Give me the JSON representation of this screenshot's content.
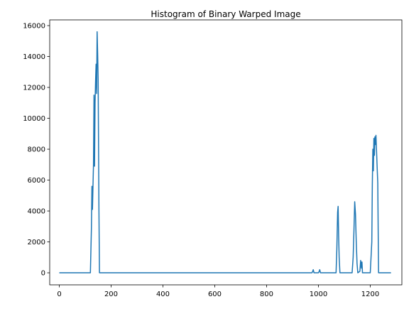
{
  "chart_data": {
    "type": "line",
    "title": "Histogram of Binary Warped Image",
    "xlabel": "",
    "ylabel": "",
    "xlim": [
      -37,
      1322
    ],
    "ylim": [
      -780,
      16370
    ],
    "x_ticks": [
      0,
      200,
      400,
      600,
      800,
      1000,
      1200
    ],
    "y_ticks": [
      0,
      2000,
      4000,
      6000,
      8000,
      10000,
      12000,
      14000,
      16000
    ],
    "grid": false,
    "line_color": "#1f77b4",
    "series": [
      {
        "x": [
          0,
          120,
          124,
          126,
          128,
          130,
          132,
          134,
          136,
          138,
          140,
          142,
          144,
          146,
          148,
          150,
          153,
          155,
          158,
          300,
          600,
          900,
          975,
          978,
          980,
          983,
          1000,
          1003,
          1005,
          1008,
          1068,
          1071,
          1074,
          1076,
          1078,
          1080,
          1083,
          1090,
          1130,
          1134,
          1137,
          1140,
          1143,
          1146,
          1149,
          1152,
          1160,
          1163,
          1166,
          1168,
          1170,
          1173,
          1200,
          1203,
          1206,
          1208,
          1210,
          1212,
          1214,
          1216,
          1218,
          1220,
          1222,
          1224,
          1226,
          1229,
          1232,
          1240,
          1280
        ],
        "y": [
          0,
          0,
          2900,
          5600,
          4100,
          5600,
          7000,
          11500,
          6900,
          11000,
          12400,
          13500,
          11600,
          15600,
          14200,
          12500,
          4000,
          0,
          0,
          0,
          0,
          0,
          0,
          100,
          200,
          0,
          0,
          100,
          200,
          0,
          0,
          1500,
          3900,
          4300,
          2400,
          1000,
          0,
          0,
          0,
          1000,
          2700,
          4600,
          3800,
          2000,
          600,
          0,
          100,
          800,
          300,
          700,
          0,
          0,
          0,
          1000,
          2000,
          5700,
          8000,
          6600,
          8700,
          7600,
          8800,
          8300,
          8900,
          8000,
          7100,
          5800,
          0,
          0,
          0
        ]
      }
    ]
  }
}
